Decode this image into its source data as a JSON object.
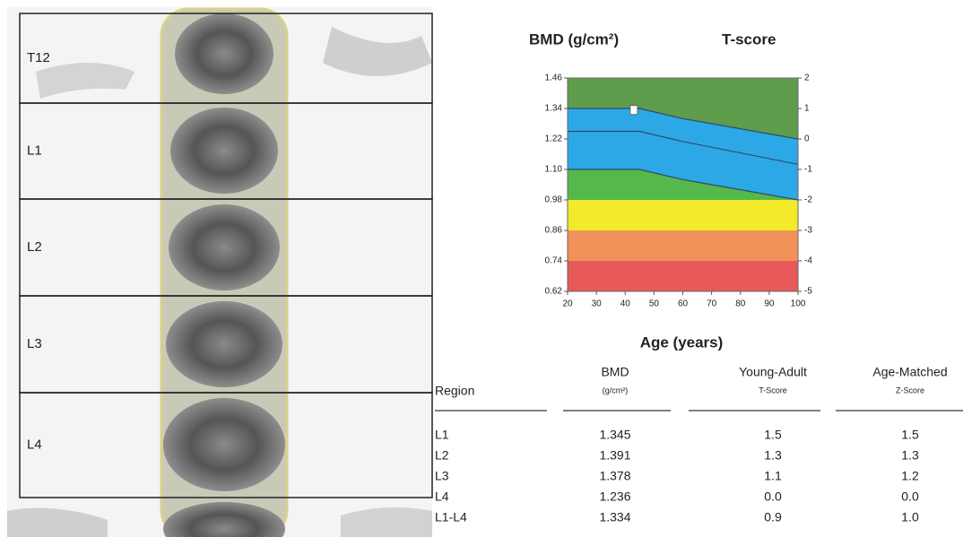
{
  "scan": {
    "labels": [
      "T12",
      "L1",
      "L2",
      "L3",
      "L4"
    ]
  },
  "chart_data": {
    "type": "band",
    "title": "BMD (g/cm²)",
    "y2label": "T-score",
    "xlabel": "Age (years)",
    "xlim": [
      20,
      100
    ],
    "xticks": [
      20,
      30,
      40,
      50,
      60,
      70,
      80,
      90,
      100
    ],
    "ylim": [
      0.62,
      1.46
    ],
    "yticks": [
      1.46,
      1.34,
      {
        "value": 1.22,
        "label": "1.22"
      },
      {
        "value": 1.1,
        "label": "1.10"
      },
      0.98,
      0.86,
      0.74,
      0.62
    ],
    "y2lim": [
      -5,
      2
    ],
    "y2ticks": [
      2,
      1,
      0,
      -1,
      -2,
      -3,
      -4,
      -5
    ],
    "background": "#5f9c4c",
    "x": [
      20,
      45,
      60,
      100
    ],
    "series": [
      {
        "color": "#2b4b6b",
        "fill": "#2da8e6",
        "values": [
          1.34,
          1.34,
          1.3,
          1.22
        ]
      },
      {
        "color": "#2b4b6b",
        "values": [
          1.25,
          1.25,
          1.21,
          1.12
        ]
      },
      {
        "color": "#2b4b6b",
        "fill": "#55b84a",
        "values": [
          1.1,
          1.1,
          1.06,
          0.98
        ]
      }
    ],
    "bands": [
      {
        "range": [
          0.86,
          0.98
        ],
        "color": "#f2ea2a"
      },
      {
        "range": [
          0.74,
          0.86
        ],
        "color": "#f0925a"
      },
      {
        "range": [
          0.62,
          0.74
        ],
        "color": "#e85a5a"
      }
    ],
    "patient": {
      "x": 43,
      "y": 1.334
    }
  },
  "table": {
    "headers": [
      {
        "main": "Region"
      },
      {
        "main": "BMD",
        "sub": "(g/cm²)"
      },
      {
        "main": "Young-Adult",
        "sub": "T-Score"
      },
      {
        "main": "Age-Matched",
        "sub": "Z-Score"
      }
    ],
    "rows": [
      [
        "L1",
        "1.345",
        "1.5",
        "1.5"
      ],
      [
        "L2",
        "1.391",
        "1.3",
        "1.3"
      ],
      [
        "L3",
        "1.378",
        "1.1",
        "1.2"
      ],
      [
        "L4",
        "1.236",
        "0.0",
        "0.0"
      ],
      [
        "L1-L4",
        "1.334",
        "0.9",
        "1.0"
      ]
    ]
  }
}
